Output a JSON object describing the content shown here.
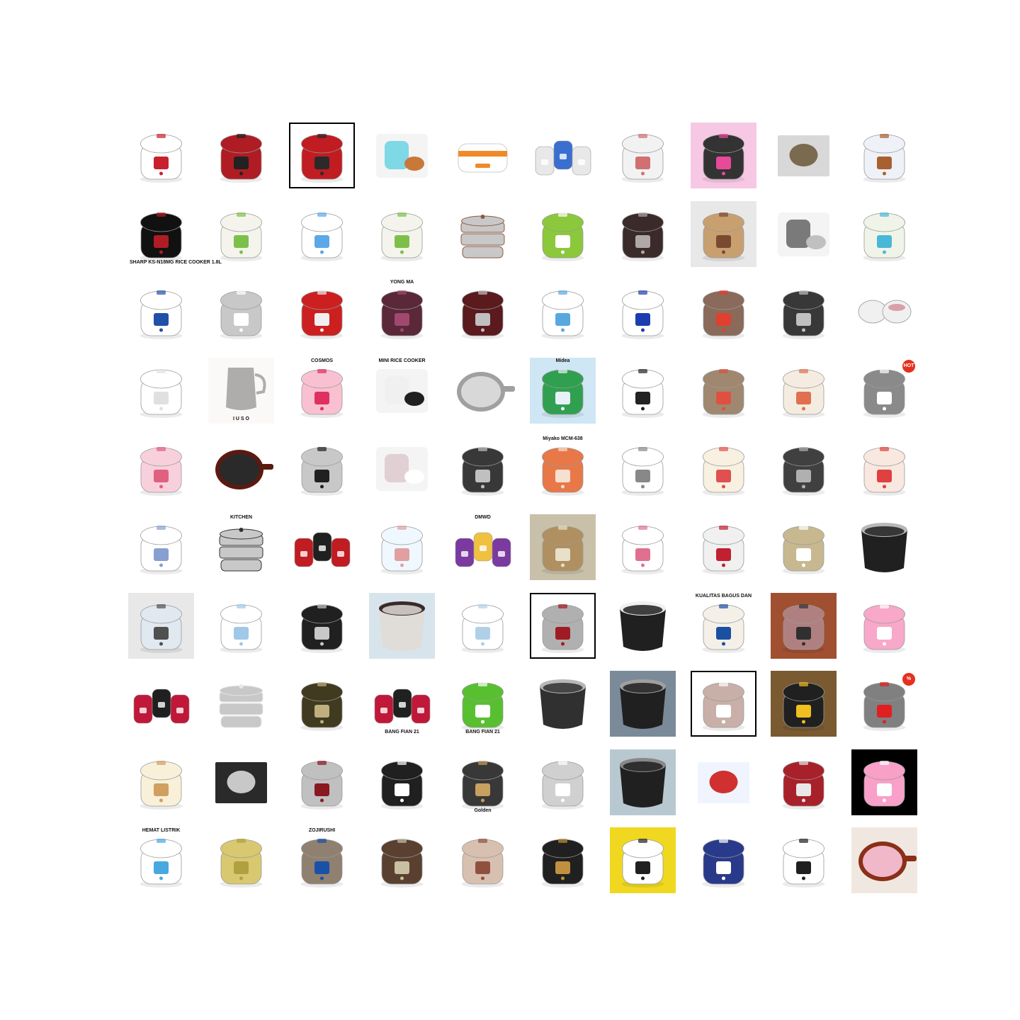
{
  "grid": {
    "columns": 10,
    "rows": 10,
    "tiles": [
      {
        "kind": "cooker",
        "body": "#ffffff",
        "accent": "#c8202e"
      },
      {
        "kind": "cooker",
        "body": "#b01c24",
        "accent": "#222222"
      },
      {
        "kind": "cooker",
        "body": "#c01c22",
        "accent": "#2a2a2a",
        "frame": true
      },
      {
        "kind": "product",
        "body": "#7fd8e6",
        "accent": "#c87838"
      },
      {
        "kind": "lunchbox",
        "body": "#ffffff",
        "accent": "#f08a28"
      },
      {
        "kind": "multi",
        "body": "#e8e8e8",
        "accent": "#3a6fd0"
      },
      {
        "kind": "cooker",
        "body": "#f2f2f2",
        "accent": "#d07070"
      },
      {
        "kind": "cooker",
        "body": "#333333",
        "accent": "#e84a9a",
        "bg": "#f7c8e4"
      },
      {
        "kind": "box",
        "body": "#d8d8d8",
        "accent": "#7a6a50"
      },
      {
        "kind": "cooker",
        "body": "#eef2f8",
        "accent": "#a86030"
      },
      {
        "kind": "cooker",
        "body": "#111111",
        "accent": "#b01c24",
        "caption": "SHARP KS-N18MG RICE COOKER 1.8L"
      },
      {
        "kind": "cooker",
        "body": "#f4f4ec",
        "accent": "#7cc04a"
      },
      {
        "kind": "cooker",
        "body": "#ffffff",
        "accent": "#5aa8e8"
      },
      {
        "kind": "cooker",
        "body": "#f4f4ec",
        "accent": "#7cc04a"
      },
      {
        "kind": "steamer",
        "body": "#c8c8c8",
        "accent": "#8a5a40"
      },
      {
        "kind": "cooker",
        "body": "#8cc83c",
        "accent": "#ffffff"
      },
      {
        "kind": "cooker",
        "body": "#3a2a2a",
        "accent": "#b0a8a8"
      },
      {
        "kind": "cooker",
        "body": "#c8a070",
        "accent": "#7a4a30",
        "bg": "#e8e8e8"
      },
      {
        "kind": "product",
        "body": "#7a7a7a",
        "accent": "#c0c0c0"
      },
      {
        "kind": "cooker",
        "body": "#f0f4e8",
        "accent": "#48b8d8"
      },
      {
        "kind": "cooker",
        "body": "#ffffff",
        "accent": "#2050a8"
      },
      {
        "kind": "cooker",
        "body": "#c8c8c8",
        "accent": "#ffffff"
      },
      {
        "kind": "cooker",
        "body": "#cc2020",
        "accent": "#f0f0f0"
      },
      {
        "kind": "cooker",
        "body": "#5a2838",
        "accent": "#a04870",
        "caption": "YONG MA",
        "capPos": "top"
      },
      {
        "kind": "cooker",
        "body": "#5a1a1e",
        "accent": "#c0c0c0"
      },
      {
        "kind": "cooker",
        "body": "#ffffff",
        "accent": "#58a8e0"
      },
      {
        "kind": "cooker",
        "body": "#ffffff",
        "accent": "#1c3cb0"
      },
      {
        "kind": "cooker",
        "body": "#8a6a5a",
        "accent": "#e04030"
      },
      {
        "kind": "cooker",
        "body": "#383838",
        "accent": "#c0c0c0"
      },
      {
        "kind": "pots",
        "body": "#f0f0f0",
        "accent": "#d8a0a8"
      },
      {
        "kind": "cooker",
        "body": "#ffffff",
        "accent": "#e0e0e0"
      },
      {
        "kind": "jug",
        "body": "#9a9a9a",
        "accent": "#f0e8e4",
        "caption": "I U S O",
        "capPos": "bottom"
      },
      {
        "kind": "cooker",
        "body": "#f8c0d0",
        "accent": "#e03060",
        "caption": "COSMOS",
        "capPos": "top"
      },
      {
        "kind": "product",
        "body": "#f0f0f0",
        "accent": "#202020",
        "caption": "MINI RICE COOKER",
        "capPos": "top"
      },
      {
        "kind": "pan",
        "body": "#d8d8d8",
        "accent": "#a0a0a0"
      },
      {
        "kind": "cooker",
        "body": "#30a050",
        "accent": "#e8f0f8",
        "bg": "#cfe6f4",
        "caption": "Midea",
        "capPos": "top"
      },
      {
        "kind": "cooker",
        "body": "#ffffff",
        "accent": "#222222"
      },
      {
        "kind": "cooker",
        "body": "#a08870",
        "accent": "#e05040"
      },
      {
        "kind": "cooker",
        "body": "#f4ece0",
        "accent": "#e07050"
      },
      {
        "kind": "cooker",
        "body": "#8a8a8a",
        "accent": "#ffffff",
        "badge": "HOT"
      },
      {
        "kind": "cooker",
        "body": "#f8d0dc",
        "accent": "#e06080"
      },
      {
        "kind": "pan",
        "body": "#2a2a2a",
        "accent": "#5a1a10"
      },
      {
        "kind": "cooker",
        "body": "#c8c8c8",
        "accent": "#202020"
      },
      {
        "kind": "product",
        "body": "#e0d0d4",
        "accent": "#ffffff"
      },
      {
        "kind": "cooker",
        "body": "#383838",
        "accent": "#c0c0c0"
      },
      {
        "kind": "cooker",
        "body": "#e87848",
        "accent": "#f8e0d0",
        "caption": "Miyako MCM-638",
        "capPos": "top"
      },
      {
        "kind": "cooker",
        "body": "#ffffff",
        "accent": "#888888"
      },
      {
        "kind": "cooker",
        "body": "#f8f0e0",
        "accent": "#e05050"
      },
      {
        "kind": "cooker",
        "body": "#404040",
        "accent": "#b0b0b0"
      },
      {
        "kind": "cooker",
        "body": "#f8e8e0",
        "accent": "#e04040"
      },
      {
        "kind": "cooker",
        "body": "#ffffff",
        "accent": "#88a0d0"
      },
      {
        "kind": "steamer",
        "body": "#c8c8c8",
        "accent": "#303030",
        "caption": "KITCHEN",
        "capPos": "top"
      },
      {
        "kind": "multi",
        "body": "#c01c22",
        "accent": "#202020"
      },
      {
        "kind": "cooker",
        "body": "#f0f8ff",
        "accent": "#e0a0a0"
      },
      {
        "kind": "multi",
        "body": "#7a3aa0",
        "accent": "#f0c040",
        "caption": "DMWD",
        "capPos": "top"
      },
      {
        "kind": "cooker",
        "body": "#b09060",
        "accent": "#e8e0c8",
        "bg": "#c8c0a8"
      },
      {
        "kind": "cooker",
        "body": "#ffffff",
        "accent": "#e07090"
      },
      {
        "kind": "cooker",
        "body": "#f0f0f0",
        "accent": "#c02030"
      },
      {
        "kind": "cooker",
        "body": "#c8b890",
        "accent": "#ffffff"
      },
      {
        "kind": "pot",
        "body": "#202020",
        "accent": "#b8b8b8"
      },
      {
        "kind": "cooker",
        "body": "#e0e8f0",
        "accent": "#505050",
        "bg": "#e8e8e8"
      },
      {
        "kind": "cooker",
        "body": "#ffffff",
        "accent": "#a0c8e8"
      },
      {
        "kind": "cooker",
        "body": "#202020",
        "accent": "#c8c8c8"
      },
      {
        "kind": "pot",
        "body": "#e0dcd8",
        "accent": "#3a2a28",
        "bg": "#d8e4ec"
      },
      {
        "kind": "cooker",
        "body": "#ffffff",
        "accent": "#b0d0e8"
      },
      {
        "kind": "cooker",
        "body": "#b0b0b0",
        "accent": "#a01c24",
        "frame": true
      },
      {
        "kind": "pot",
        "body": "#202020",
        "accent": "#f0f0f0"
      },
      {
        "kind": "cooker",
        "body": "#f4f0e8",
        "accent": "#1a50a0",
        "caption": "KUALITAS BAGUS DAN",
        "capPos": "top"
      },
      {
        "kind": "cooker",
        "body": "#b08080",
        "accent": "#303030",
        "bg": "#a05030"
      },
      {
        "kind": "cooker",
        "body": "#f8a8c8",
        "accent": "#ffffff"
      },
      {
        "kind": "multi",
        "body": "#c01838",
        "accent": "#202020"
      },
      {
        "kind": "steamer",
        "body": "#c8c8c8",
        "accent": "#e8e8e8"
      },
      {
        "kind": "cooker",
        "body": "#403a20",
        "accent": "#c0b080"
      },
      {
        "kind": "multi",
        "body": "#c01838",
        "accent": "#202020",
        "caption": "BANG FIAN 21",
        "capPos": "bottom"
      },
      {
        "kind": "cooker",
        "body": "#58c030",
        "accent": "#ffffff",
        "caption": "BANG FIAN 21",
        "capPos": "bottom"
      },
      {
        "kind": "pot",
        "body": "#303030",
        "accent": "#b8b8b8"
      },
      {
        "kind": "pot",
        "body": "#202020",
        "accent": "#a0a0a0",
        "bg": "#7a8a98"
      },
      {
        "kind": "cooker",
        "body": "#c8b0a8",
        "accent": "#ffffff",
        "frame": true
      },
      {
        "kind": "cooker",
        "body": "#202020",
        "accent": "#f0c020",
        "bg": "#7a5a30"
      },
      {
        "kind": "cooker",
        "body": "#808080",
        "accent": "#e02020",
        "badge": "%"
      },
      {
        "kind": "cooker",
        "body": "#f8f0d8",
        "accent": "#d0a060"
      },
      {
        "kind": "box",
        "body": "#2a2a2a",
        "accent": "#c8c8c8"
      },
      {
        "kind": "cooker",
        "body": "#c0c0c0",
        "accent": "#8a1820"
      },
      {
        "kind": "cooker",
        "body": "#202020",
        "accent": "#ffffff"
      },
      {
        "kind": "cooker",
        "body": "#383838",
        "accent": "#c8a060",
        "caption": "Golden",
        "capPos": "bottom"
      },
      {
        "kind": "cooker",
        "body": "#d0d0d0",
        "accent": "#ffffff"
      },
      {
        "kind": "pot",
        "body": "#202020",
        "accent": "#888888",
        "bg": "#b8c8d0"
      },
      {
        "kind": "box",
        "body": "#f0f4ff",
        "accent": "#d03030"
      },
      {
        "kind": "cooker",
        "body": "#a8202a",
        "accent": "#e8e8e8"
      },
      {
        "kind": "cooker",
        "body": "#f8a0c8",
        "accent": "#ffffff",
        "bg": "#000000"
      },
      {
        "kind": "cooker",
        "body": "#ffffff",
        "accent": "#48a8e0",
        "caption": "HEMAT LISTRIK",
        "capPos": "top"
      },
      {
        "kind": "cooker",
        "body": "#d8c870",
        "accent": "#b0a040"
      },
      {
        "kind": "cooker",
        "body": "#908070",
        "accent": "#1a50a8",
        "caption": "ZOJIRUSHI",
        "capPos": "top"
      },
      {
        "kind": "cooker",
        "body": "#5a4030",
        "accent": "#c8c0a0"
      },
      {
        "kind": "cooker",
        "body": "#d8c0b0",
        "accent": "#905040"
      },
      {
        "kind": "cooker",
        "body": "#202020",
        "accent": "#c09040"
      },
      {
        "kind": "cooker",
        "body": "#ffffff",
        "accent": "#202020",
        "bg": "#f0d820"
      },
      {
        "kind": "cooker",
        "body": "#2a3a8a",
        "accent": "#ffffff"
      },
      {
        "kind": "cooker",
        "body": "#ffffff",
        "accent": "#202020"
      },
      {
        "kind": "pan",
        "body": "#f0b8c8",
        "accent": "#8a3018",
        "bg": "#f0e8e0"
      }
    ]
  }
}
